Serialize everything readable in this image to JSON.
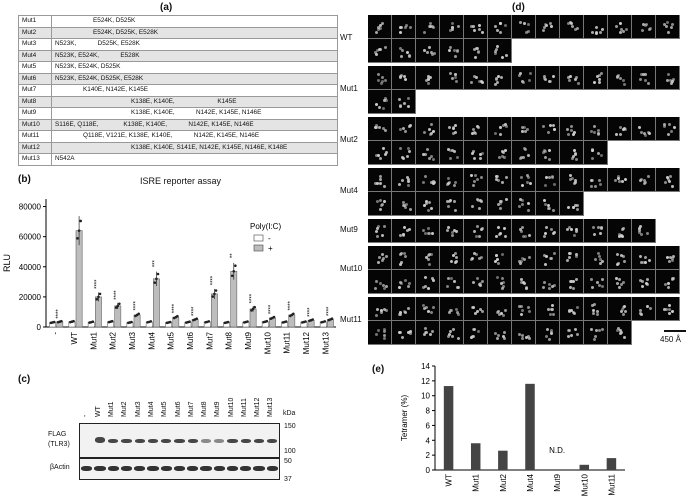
{
  "panel_a": {
    "label": "(a)",
    "rows": [
      {
        "name": "Mut1",
        "mutations": "E524K, D525K",
        "indent": 38
      },
      {
        "name": "Mut2",
        "mutations": "E524K, D525K, E528K",
        "indent": 38
      },
      {
        "name": "Mut3",
        "mutations": "N523K,            D525K, E528K",
        "indent": 0
      },
      {
        "name": "Mut4",
        "mutations": "N523K, E524K,            E528K",
        "indent": 0
      },
      {
        "name": "Mut5",
        "mutations": "N523K, E524K, D525K",
        "indent": 0
      },
      {
        "name": "Mut6",
        "mutations": "N523K, E524K, D525K, E528K",
        "indent": 0
      },
      {
        "name": "Mut7",
        "mutations": "K140E, N142E, K145E",
        "indent": 28
      },
      {
        "name": "Mut8",
        "mutations": "K138E, K140E,                        K145E",
        "indent": 76
      },
      {
        "name": "Mut9",
        "mutations": "K138E, K140E,            N142E, K145E, N146E",
        "indent": 76
      },
      {
        "name": "Mut10",
        "mutations": "S116E, Q118E,              K138E, K140E,            N142E, K145E, N146E",
        "indent": 0
      },
      {
        "name": "Mut11",
        "mutations": "Q118E, V121E, K138E, K140E,            N142E, K145E, N146E",
        "indent": 28
      },
      {
        "name": "Mut12",
        "mutations": "K138E, K140E, S141E, N142E, K145E, N146E, K148E",
        "indent": 76
      },
      {
        "name": "Mut13",
        "mutations": "N542A",
        "indent": 0
      }
    ]
  },
  "panel_b": {
    "label": "(b)",
    "title": "ISRE reporter assay",
    "ylabel": "RLU",
    "legend_title": "Poly(I:C)",
    "legend_minus": "-",
    "legend_plus": "+",
    "sig_label": "****",
    "sig_labels": [
      "****",
      "",
      "****",
      "****",
      "****",
      "***",
      "****",
      "****",
      "****",
      "**",
      "****",
      "****",
      "****",
      "****",
      "****"
    ]
  },
  "panel_c": {
    "label": "(c)",
    "lanes": [
      "-",
      "WT",
      "Mut1",
      "Mut2",
      "Mut3",
      "Mut4",
      "Mut5",
      "Mut6",
      "Mut7",
      "Mut8",
      "Mut9",
      "Mut10",
      "Mut11",
      "Mut12",
      "Mut13"
    ],
    "kda_label": "kDa",
    "flag_label": "FLAG",
    "tlr3_label": "(TLR3)",
    "actin_label": "βActin",
    "markers_top": [
      "150",
      "100"
    ],
    "markers_bottom": [
      "50",
      "37"
    ]
  },
  "panel_d": {
    "label": "(d)",
    "rows": [
      {
        "name": "WT",
        "cells": [
          13,
          6
        ]
      },
      {
        "name": "Mut1",
        "cells": [
          13,
          2
        ]
      },
      {
        "name": "Mut2",
        "cells": [
          13,
          10
        ]
      },
      {
        "name": "Mut4",
        "cells": [
          13,
          9
        ]
      },
      {
        "name": "Mut9",
        "cells": [
          12
        ]
      },
      {
        "name": "Mut10",
        "cells": [
          13,
          13
        ]
      },
      {
        "name": "Mut11",
        "cells": [
          13,
          11
        ]
      }
    ],
    "scale_label": "450 Å"
  },
  "panel_e": {
    "label": "(e)",
    "nd_label": "N.D."
  },
  "chart_data": [
    {
      "type": "bar",
      "title": "ISRE reporter assay",
      "ylabel": "RLU",
      "xlabel": "",
      "categories": [
        "-",
        "WT",
        "Mut1",
        "Mut2",
        "Mut3",
        "Mut4",
        "Mut5",
        "Mut6",
        "Mut7",
        "Mut8",
        "Mut9",
        "Mut10",
        "Mut11",
        "Mut12",
        "Mut13"
      ],
      "series": [
        {
          "name": "-",
          "values": [
            3000,
            3500,
            3200,
            3500,
            3000,
            3400,
            3000,
            3200,
            3400,
            3000,
            3300,
            3500,
            3300,
            3300,
            3400
          ]
        },
        {
          "name": "+",
          "values": [
            3500,
            64000,
            20000,
            14000,
            8000,
            32000,
            6500,
            5000,
            22000,
            37000,
            12000,
            6000,
            8000,
            4500,
            5000
          ]
        }
      ],
      "ylim": [
        0,
        85000
      ],
      "yticks": [
        0,
        20000,
        40000,
        60000,
        80000
      ],
      "legend": "top-right"
    },
    {
      "type": "bar",
      "title": "",
      "ylabel": "Tetramer (%)",
      "xlabel": "",
      "categories": [
        "WT",
        "Mut1",
        "Mut2",
        "Mut4",
        "Mut9",
        "Mut10",
        "Mut11"
      ],
      "values": [
        11.3,
        3.6,
        2.6,
        11.6,
        0,
        0.7,
        1.6
      ],
      "ylim": [
        0,
        14
      ],
      "yticks": [
        0,
        2,
        4,
        6,
        8,
        10,
        12,
        14
      ]
    }
  ]
}
